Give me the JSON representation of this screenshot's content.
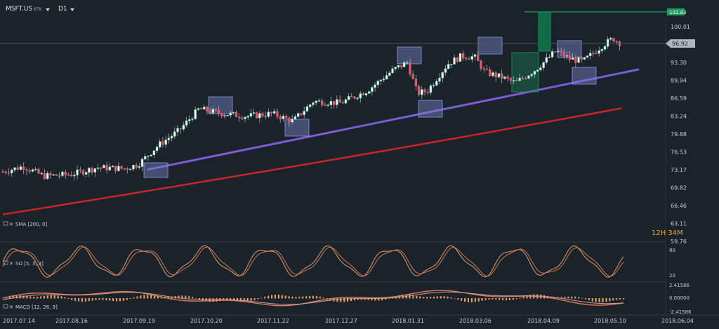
{
  "toolbar": {
    "symbol": "MSFT.US",
    "exchange": "BTK",
    "timeframe": "D1"
  },
  "timer": "12H 34M",
  "current_price": "96.92",
  "target_price": "102.83",
  "indicators": {
    "sma": "SMA [200, 0]",
    "so": "SO [5, 3, 3]",
    "macd": "MACD [12, 26, 9]"
  },
  "so_levels": [
    "80",
    "20"
  ],
  "macd_levels": [
    "2.41586",
    "0.00000",
    "-2.41586"
  ],
  "chart_data": {
    "type": "candlestick",
    "price_ticks": [
      100.01,
      96.92,
      93.3,
      89.94,
      86.59,
      83.24,
      79.88,
      76.53,
      73.17,
      69.82,
      66.46,
      63.11,
      59.76
    ],
    "price_tick_labels": [
      "100.01",
      "96.92",
      "93.30",
      "89.94",
      "86.59",
      "83.24",
      "79.88",
      "76.53",
      "73.17",
      "69.82",
      "66.46",
      "63.11",
      "59.76"
    ],
    "x_labels": [
      "2017.07.14",
      "2017.08.16",
      "2017.09.19",
      "2017.10.20",
      "2017.11.22",
      "2017.12.27",
      "2018.01.31",
      "2018.03.06",
      "2018.04.09",
      "2018.05.10",
      "2018.06.04"
    ],
    "ylim": [
      59.76,
      103.5
    ],
    "key_points": [
      {
        "date": "2017.07.14",
        "close": 72.8
      },
      {
        "date": "2017.08.16",
        "close": 72.3
      },
      {
        "date": "2017.09.19",
        "close": 74.2
      },
      {
        "date": "2017.10.20",
        "close": 84.6
      },
      {
        "date": "2017.11.22",
        "close": 83.7
      },
      {
        "date": "2017.12.27",
        "close": 85.7
      },
      {
        "date": "2018.01.31",
        "close": 93.3
      },
      {
        "date": "2018.03.06",
        "close": 94.3
      },
      {
        "date": "2018.04.09",
        "close": 93.9
      },
      {
        "date": "2018.05.10",
        "close": 97.8
      }
    ],
    "trend_lines": {
      "support": {
        "start": {
          "date": "2017.09.19",
          "price": 73.2
        },
        "end": {
          "date": "2018.06.04",
          "price": 92.0
        }
      },
      "sma200": {
        "start": {
          "date": "2017.07.14",
          "price": 64.8
        },
        "end": {
          "date": "2018.05.10",
          "price": 84.7
        }
      }
    },
    "colors": {
      "up": "#6fd3a8",
      "down": "#e0566a",
      "support_line": "#7b5bd6",
      "sma_line": "#c8252b",
      "stochastic": "#e89a6a",
      "macd_hist": "#f5a15c",
      "target": "#1f8a5a"
    }
  }
}
